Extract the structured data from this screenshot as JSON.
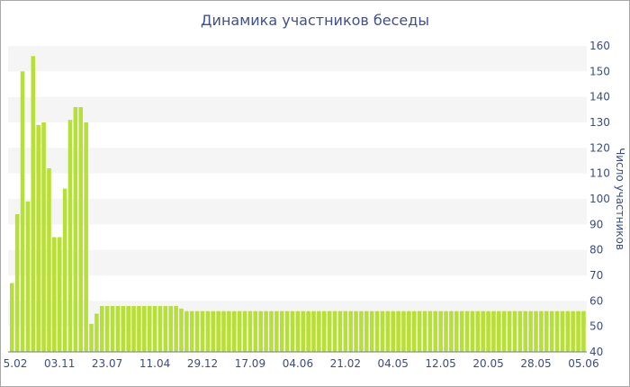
{
  "chart_data": {
    "type": "bar",
    "title": "Динамика участников беседы",
    "ylabel": "Число участников",
    "xlabel": "",
    "ylim": [
      40,
      160
    ],
    "yticks": [
      40,
      50,
      60,
      70,
      80,
      90,
      100,
      110,
      120,
      130,
      140,
      150,
      160
    ],
    "y_axis_side": "right",
    "x_tick_labels": [
      "5.02",
      "03.11",
      "23.07",
      "11.04",
      "29.12",
      "17.09",
      "04.06",
      "21.02",
      "04.05",
      "12.05",
      "20.05",
      "28.05",
      "05.06"
    ],
    "x_tick_bar_index": [
      0,
      9,
      18,
      27,
      36,
      45,
      54,
      63,
      72,
      81,
      90,
      99,
      108
    ],
    "bar_color": "#b7e037",
    "band_color": "#f5f5f5",
    "values": [
      67,
      94,
      150,
      99,
      156,
      129,
      130,
      112,
      85,
      85,
      104,
      131,
      136,
      136,
      130,
      51,
      55,
      58,
      58,
      58,
      58,
      58,
      58,
      58,
      58,
      58,
      58,
      58,
      58,
      58,
      58,
      58,
      57,
      56,
      56,
      56,
      56,
      56,
      56,
      56,
      56,
      56,
      56,
      56,
      56,
      56,
      56,
      56,
      56,
      56,
      56,
      56,
      56,
      56,
      56,
      56,
      56,
      56,
      56,
      56,
      56,
      56,
      56,
      56,
      56,
      56,
      56,
      56,
      56,
      56,
      56,
      56,
      56,
      56,
      56,
      56,
      56,
      56,
      56,
      56,
      56,
      56,
      56,
      56,
      56,
      56,
      56,
      56,
      56,
      56,
      56,
      56,
      56,
      56,
      56,
      56,
      56,
      56,
      56,
      56,
      56,
      56,
      56,
      56,
      56,
      56,
      56,
      56,
      56
    ]
  }
}
